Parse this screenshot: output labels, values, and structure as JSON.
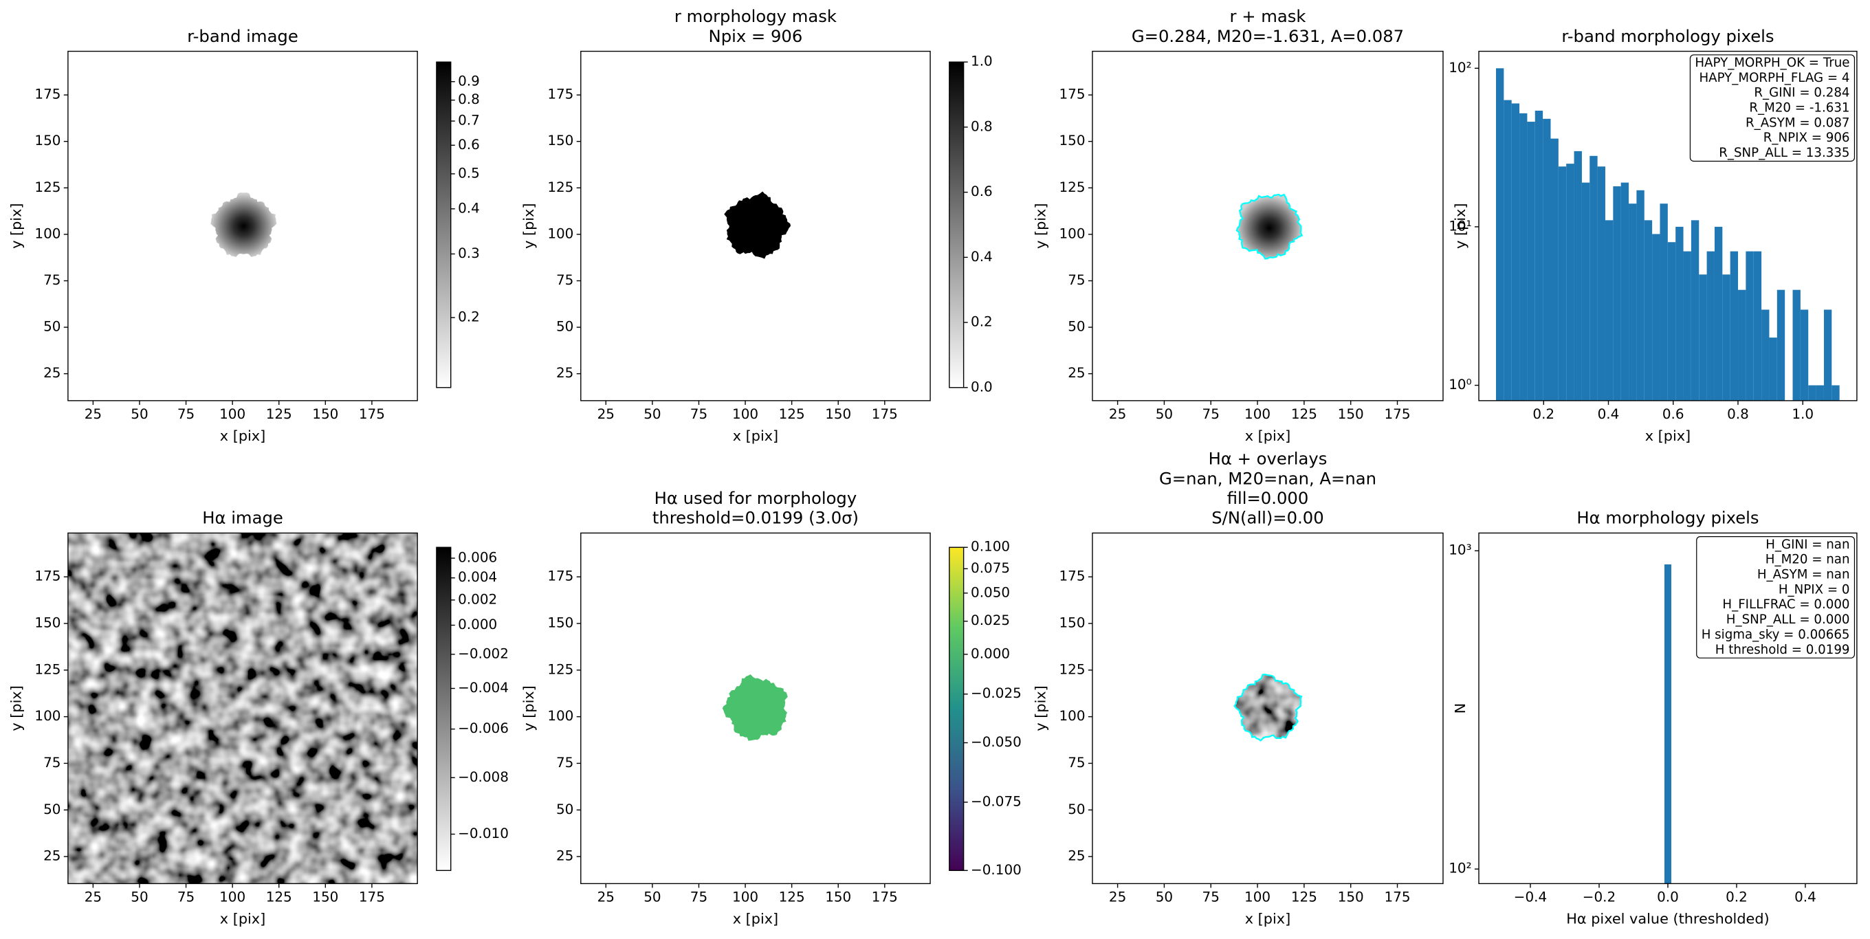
{
  "chart_data": [
    {
      "type": "image",
      "title": [
        "r-band image"
      ],
      "xlabel": "x [pix]",
      "ylabel": "y [pix]",
      "xlim": [
        11.5,
        199.5
      ],
      "ylim": [
        10.5,
        198.5
      ],
      "xticks": [
        25,
        50,
        75,
        100,
        125,
        150,
        175
      ],
      "yticks": [
        25,
        50,
        75,
        100,
        125,
        150,
        175
      ],
      "cmap": "gray_r",
      "colorbar": {
        "scale": "log",
        "clim": [
          0.128,
          1.02
        ],
        "ticks": [
          0.2,
          0.3,
          0.4,
          0.5,
          0.6,
          0.7,
          0.8,
          0.9
        ]
      }
    },
    {
      "type": "image",
      "title": [
        "r morphology mask",
        "Npix = 906"
      ],
      "xlabel": "x [pix]",
      "ylabel": "y [pix]",
      "xlim": [
        11.5,
        199.5
      ],
      "ylim": [
        10.5,
        198.5
      ],
      "xticks": [
        25,
        50,
        75,
        100,
        125,
        150,
        175
      ],
      "yticks": [
        25,
        50,
        75,
        100,
        125,
        150,
        175
      ],
      "cmap": "gray_r",
      "colorbar": {
        "scale": "linear",
        "clim": [
          0,
          1
        ],
        "ticks": [
          {
            "value": 0,
            "label": "0.0"
          },
          0.2,
          0.4,
          0.6,
          0.8,
          {
            "value": 1,
            "label": "1.0"
          }
        ]
      }
    },
    {
      "type": "image",
      "title": [
        "r + mask",
        "G=0.284, M20=-1.631, A=0.087"
      ],
      "xlabel": "x [pix]",
      "ylabel": "y [pix]",
      "xlim": [
        11.5,
        199.5
      ],
      "ylim": [
        10.5,
        198.5
      ],
      "xticks": [
        25,
        50,
        75,
        100,
        125,
        150,
        175
      ],
      "yticks": [
        25,
        50,
        75,
        100,
        125,
        150,
        175
      ],
      "cmap": "gray_r",
      "contour_color": "cyan"
    },
    {
      "type": "histogram",
      "title": [
        "r-band morphology pixels"
      ],
      "xlabel": "x [pix]",
      "ylabel": "y [pix]",
      "bins": [
        0.053,
        0.0771,
        0.1012,
        0.1253,
        0.1494,
        0.1735,
        0.1976,
        0.2217,
        0.2458,
        0.2699,
        0.294,
        0.3181,
        0.3422,
        0.3663,
        0.3904,
        0.4145,
        0.4386,
        0.4627,
        0.4868,
        0.5109,
        0.535,
        0.5591,
        0.5832,
        0.6073,
        0.6314,
        0.6555,
        0.6796,
        0.7037,
        0.7278,
        0.7519,
        0.776,
        0.8001,
        0.8242,
        0.8483,
        0.8724,
        0.8965,
        0.9206,
        0.9447,
        0.9688,
        0.9929,
        1.017,
        1.0411,
        1.0652,
        1.0893,
        1.1134
      ],
      "values": [
        100,
        63,
        60,
        52,
        46,
        54,
        48,
        36,
        24,
        25,
        30,
        19,
        28,
        24,
        11,
        18,
        19,
        14,
        17,
        11,
        9,
        14,
        8,
        10,
        7,
        11,
        5,
        7,
        10,
        5,
        7,
        4,
        7,
        7,
        3,
        2,
        4,
        0,
        4,
        3,
        1,
        1,
        3,
        1
      ],
      "color": "#1f77b4",
      "xlim": [
        0.0,
        1.167
      ],
      "ylim": [
        0.8,
        128
      ],
      "log_y": true,
      "xticks": [
        0.2,
        0.4,
        0.6,
        0.8,
        {
          "value": 1,
          "label": "1.0"
        }
      ],
      "yticks": [
        {
          "value": 1,
          "label": "10⁰"
        },
        {
          "value": 10,
          "label": "10¹"
        },
        {
          "value": 100,
          "label": "10²"
        }
      ],
      "annotation": [
        "HAPY_MORPH_OK = True",
        "HAPY_MORPH_FLAG = 4",
        "R_GINI = 0.284",
        "R_M20 = -1.631",
        "R_ASYM = 0.087",
        "R_NPIX = 906",
        "R_SNP_ALL = 13.335"
      ]
    },
    {
      "type": "image",
      "title": [
        "Hα image"
      ],
      "xlabel": "x [pix]",
      "ylabel": "y [pix]",
      "xlim": [
        11.5,
        199.5
      ],
      "ylim": [
        10.5,
        198.5
      ],
      "xticks": [
        25,
        50,
        75,
        100,
        125,
        150,
        175
      ],
      "yticks": [
        25,
        50,
        75,
        100,
        125,
        150,
        175
      ],
      "cmap": "gray_r",
      "colorbar": {
        "scale": "asinh",
        "clim": [
          -0.0112,
          0.0072
        ],
        "ticks": [
          0.006,
          0.004,
          0.002,
          {
            "value": 0,
            "label": "0.000"
          },
          {
            "value": -0.002,
            "label": "−0.002"
          },
          {
            "value": -0.004,
            "label": "−0.004"
          },
          {
            "value": -0.006,
            "label": "−0.006"
          },
          {
            "value": -0.008,
            "label": "−0.008"
          },
          {
            "value": -0.01,
            "label": "−0.010"
          }
        ]
      }
    },
    {
      "type": "image",
      "title": [
        "Hα used for morphology",
        "threshold=0.0199 (3.0σ)"
      ],
      "xlabel": "x [pix]",
      "ylabel": "y [pix]",
      "xlim": [
        11.5,
        199.5
      ],
      "ylim": [
        10.5,
        198.5
      ],
      "xticks": [
        25,
        50,
        75,
        100,
        125,
        150,
        175
      ],
      "yticks": [
        25,
        50,
        75,
        100,
        125,
        150,
        175
      ],
      "cmap": "viridis",
      "fill_color": "#4ac16d",
      "colorbar": {
        "scale": "asinh",
        "clim": [
          -0.1,
          0.1
        ],
        "ticks": [
          {
            "value": 0.1,
            "label": "0.100"
          },
          0.075,
          {
            "value": 0.05,
            "label": "0.050"
          },
          0.025,
          {
            "value": 0,
            "label": "0.000"
          },
          {
            "value": -0.025,
            "label": "−0.025"
          },
          {
            "value": -0.05,
            "label": "−0.050"
          },
          {
            "value": -0.075,
            "label": "−0.075"
          },
          {
            "value": -0.1,
            "label": "−0.100"
          }
        ]
      }
    },
    {
      "type": "image",
      "title": [
        "Hα + overlays",
        "G=nan, M20=nan, A=nan",
        "fill=0.000",
        "S/N(all)=0.00"
      ],
      "xlabel": "x [pix]",
      "ylabel": "y [pix]",
      "xlim": [
        11.5,
        199.5
      ],
      "ylim": [
        10.5,
        198.5
      ],
      "xticks": [
        25,
        50,
        75,
        100,
        125,
        150,
        175
      ],
      "yticks": [
        25,
        50,
        75,
        100,
        125,
        150,
        175
      ],
      "cmap": "gray_r",
      "contour_color": "cyan"
    },
    {
      "type": "histogram",
      "title": [
        "Hα morphology pixels"
      ],
      "xlabel": "Hα pixel value (thresholded)",
      "ylabel": "N",
      "bins": [
        -0.01,
        0.01
      ],
      "values": [
        906
      ],
      "color": "#1f77b4",
      "xlim": [
        -0.55,
        0.55
      ],
      "ylim": [
        90,
        1137
      ],
      "log_y": true,
      "xticks": [
        {
          "value": -0.4,
          "label": "−0.4"
        },
        {
          "value": -0.2,
          "label": "−0.2"
        },
        {
          "value": 0,
          "label": "0.0"
        },
        0.2,
        0.4
      ],
      "yticks": [
        {
          "value": 100,
          "label": "10²"
        },
        {
          "value": 1000,
          "label": "10³"
        }
      ],
      "annotation": [
        "H_GINI = nan",
        "H_M20 = nan",
        "H_ASYM = nan",
        "H_NPIX = 0",
        "H_FILLFRAC = 0.000",
        "H_SNP_ALL = 0.000",
        "H sigma_sky = 0.00665",
        "H threshold = 0.0199"
      ]
    }
  ]
}
